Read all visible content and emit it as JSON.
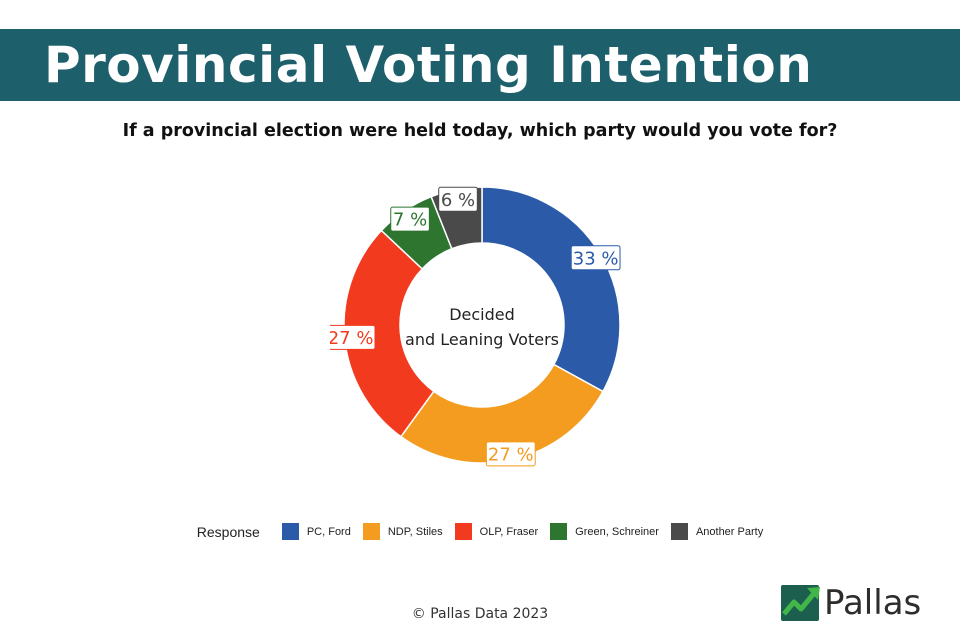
{
  "header": {
    "title": "Provincial Voting Intention",
    "question": "If a provincial election were held today, which party would you vote for?"
  },
  "chart_data": {
    "type": "pie",
    "variant": "donut",
    "title": "If a provincial election were held today, which party would you vote for?",
    "center_label": [
      "Decided",
      "and Leaning Voters"
    ],
    "legend_title": "Response",
    "legend_position": "bottom",
    "value_suffix": " %",
    "slices": [
      {
        "name": "PC, Ford",
        "value": 33,
        "color": "#2a5aa8"
      },
      {
        "name": "NDP, Stiles",
        "value": 27,
        "color": "#f39c1f"
      },
      {
        "name": "OLP, Fraser",
        "value": 27,
        "color": "#f23a1e"
      },
      {
        "name": "Green, Schreiner",
        "value": 7,
        "color": "#2e7530"
      },
      {
        "name": "Another Party",
        "value": 6,
        "color": "#4a4a4a"
      }
    ]
  },
  "footer": {
    "copyright": "© Pallas Data 2023"
  },
  "logo": {
    "name": "Pallas",
    "icon": "pallas-logo-icon",
    "colors": {
      "dark": "#1d5f4f",
      "light": "#43b649"
    }
  }
}
